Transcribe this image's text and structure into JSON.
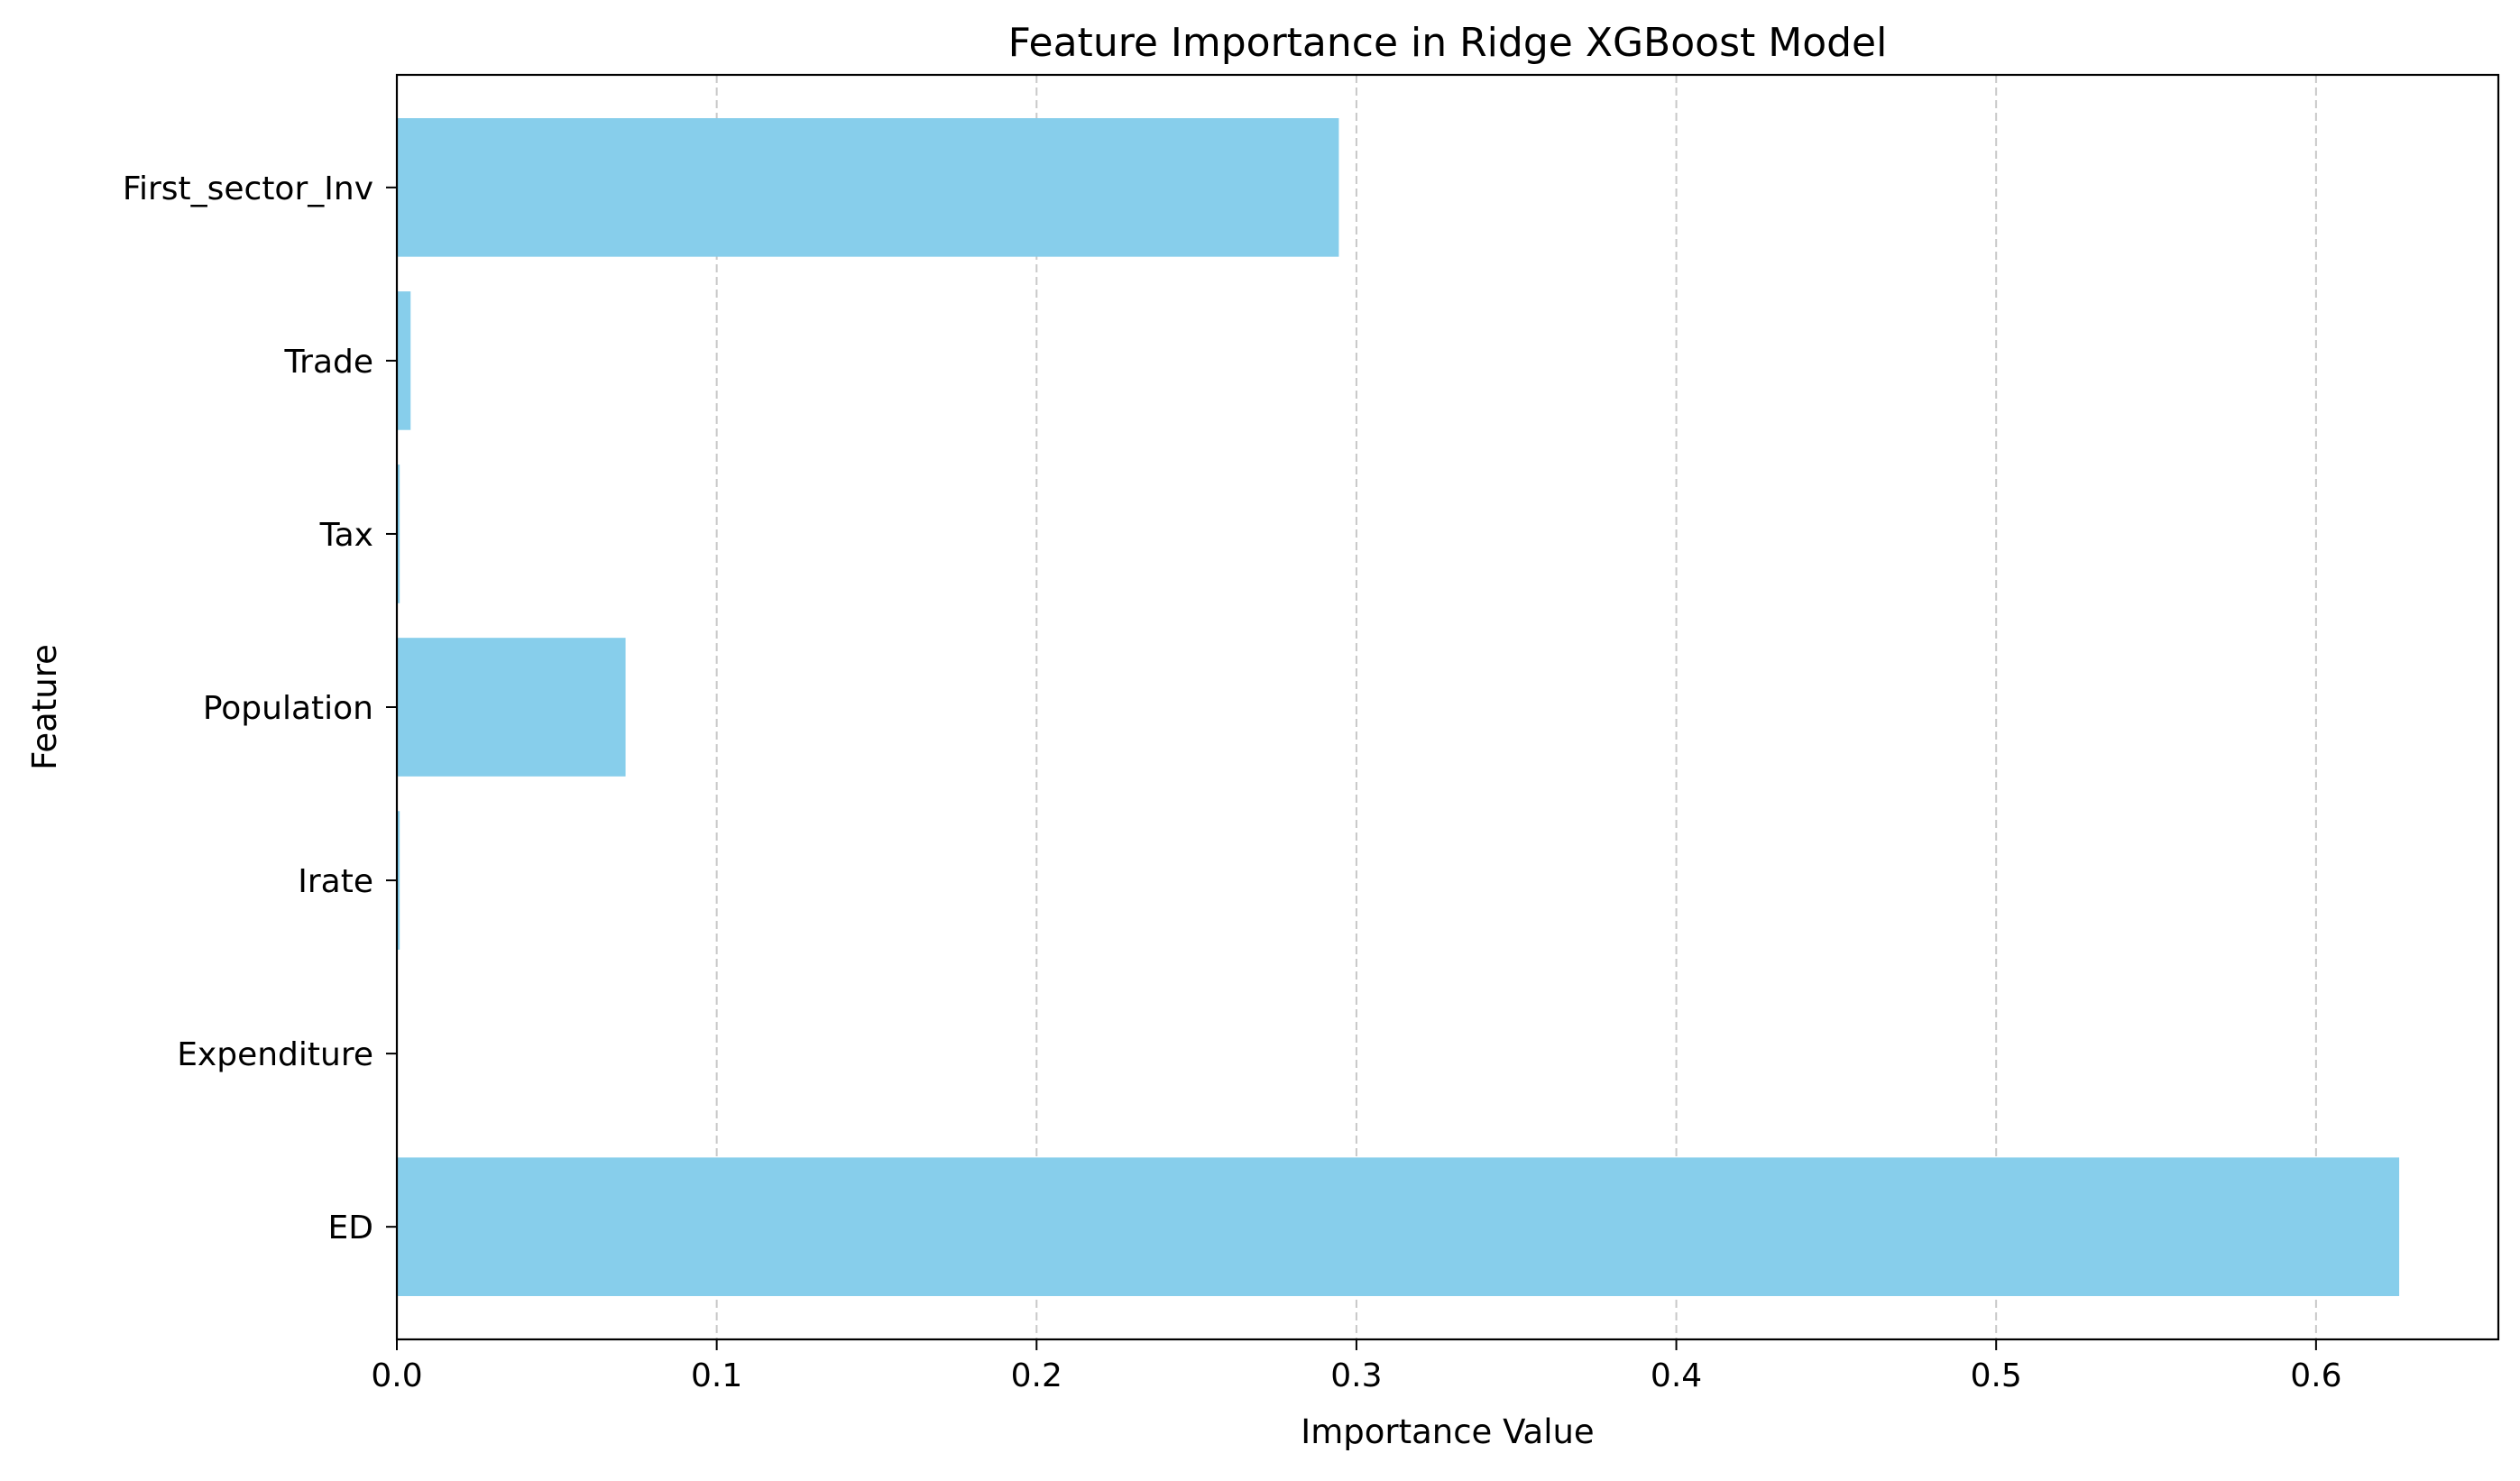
{
  "chart_data": {
    "type": "bar",
    "orientation": "horizontal",
    "title": "Feature Importance in Ridge XGBoost Model",
    "xlabel": "Importance Value",
    "ylabel": "Feature",
    "categories": [
      "ED",
      "Expenditure",
      "Irate",
      "Population",
      "Tax",
      "Trade",
      "First_sector_Inv"
    ],
    "values": [
      0.626,
      0.0003,
      0.0009,
      0.0715,
      0.0009,
      0.0043,
      0.2945
    ],
    "xlim": [
      0,
      0.657
    ],
    "xticks": [
      0.0,
      0.1,
      0.2,
      0.3,
      0.4,
      0.5,
      0.6
    ],
    "xtick_labels": [
      "0.0",
      "0.1",
      "0.2",
      "0.3",
      "0.4",
      "0.5",
      "0.6"
    ],
    "grid": {
      "axis": "x",
      "style": "dashed"
    },
    "bar_color": "#87CEEB"
  }
}
